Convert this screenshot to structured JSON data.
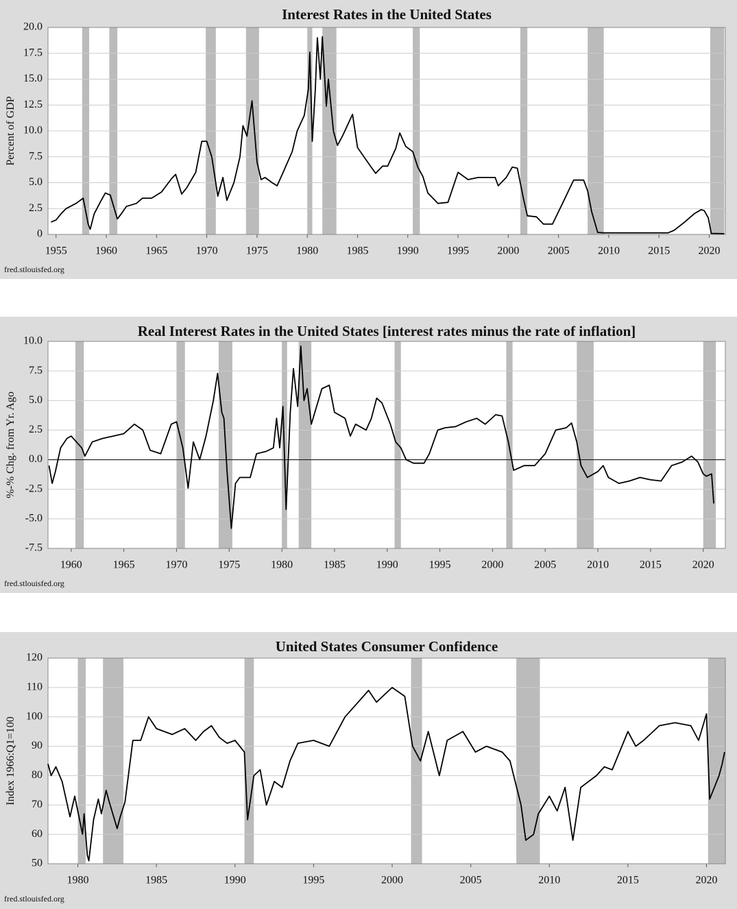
{
  "chart_data": [
    {
      "type": "line",
      "title": "Interest Rates in the United States",
      "y_label": "Percent of GDP",
      "source": "fred.stlouisfed.org",
      "color": "#000000",
      "recession_color": "#bbbbbb",
      "grid": true,
      "xlim": [
        1954.2,
        2021.6
      ],
      "ylim": [
        0,
        20
      ],
      "xticks": [
        1955,
        1960,
        1965,
        1970,
        1975,
        1980,
        1985,
        1990,
        1995,
        2000,
        2005,
        2010,
        2015,
        2020
      ],
      "yticks": [
        0,
        2.5,
        {
          "value": 5,
          "label": "5.0"
        },
        7.5,
        {
          "value": 10,
          "label": "10.0"
        },
        12.5,
        {
          "value": 15,
          "label": "15.0"
        },
        17.5,
        {
          "value": 20,
          "label": "20.0"
        }
      ],
      "recessions": [
        [
          1957.6,
          1958.3
        ],
        [
          1960.3,
          1961.1
        ],
        [
          1969.9,
          1970.9
        ],
        [
          1973.9,
          1975.2
        ],
        [
          1980.0,
          1980.5
        ],
        [
          1981.5,
          1982.9
        ],
        [
          1990.5,
          1991.2
        ],
        [
          2001.2,
          2001.9
        ],
        [
          2007.9,
          2009.5
        ],
        [
          2020.1,
          2021.5
        ]
      ],
      "x": [
        1954.5,
        1955,
        1955.5,
        1956,
        1957,
        1957.7,
        1958.2,
        1958.4,
        1958.8,
        1959.5,
        1959.9,
        1960.4,
        1960.8,
        1961.1,
        1961.5,
        1962,
        1963,
        1963.6,
        1964.5,
        1965.5,
        1966.5,
        1966.9,
        1967.5,
        1968,
        1968.9,
        1969.5,
        1970,
        1970.5,
        1971.1,
        1971.6,
        1972,
        1972.7,
        1973.3,
        1973.6,
        1974,
        1974.5,
        1975,
        1975.4,
        1975.8,
        1976.5,
        1977,
        1977.6,
        1978.5,
        1979,
        1979.7,
        1980.1,
        1980.25,
        1980.5,
        1980.8,
        1981.0,
        1981.3,
        1981.5,
        1981.9,
        1982.1,
        1982.6,
        1983,
        1983.5,
        1984.5,
        1985,
        1986,
        1986.8,
        1987.5,
        1988,
        1988.8,
        1989.2,
        1989.8,
        1990.5,
        1991,
        1991.5,
        1992,
        1993,
        1994,
        1995,
        1996,
        1997,
        1998.7,
        1999,
        1999.8,
        2000.4,
        2000.9,
        2001.5,
        2001.9,
        2002.8,
        2003.5,
        2004.4,
        2005.4,
        2006.5,
        2007.5,
        2007.9,
        2008.3,
        2008.9,
        2009.5,
        2015.9,
        2016.5,
        2017.5,
        2018.5,
        2019.2,
        2019.5,
        2019.9,
        2020.2,
        2021.5
      ],
      "values": [
        1.2,
        1.4,
        2.0,
        2.5,
        3.0,
        3.5,
        1.0,
        0.5,
        2.0,
        3.3,
        4.0,
        3.8,
        2.5,
        1.5,
        2.0,
        2.7,
        3.0,
        3.5,
        3.5,
        4.1,
        5.4,
        5.8,
        3.9,
        4.5,
        6.0,
        9.0,
        9.0,
        7.5,
        3.7,
        5.5,
        3.3,
        5.0,
        7.5,
        10.5,
        9.5,
        12.9,
        7.0,
        5.3,
        5.5,
        5.0,
        4.7,
        6.0,
        8.0,
        10.0,
        11.5,
        14.0,
        17.6,
        9.0,
        14.0,
        19.0,
        15.0,
        19.1,
        12.4,
        15.0,
        10.0,
        8.6,
        9.5,
        11.6,
        8.4,
        7.0,
        5.9,
        6.6,
        6.6,
        8.3,
        9.8,
        8.5,
        8.0,
        6.5,
        5.6,
        4.0,
        3.0,
        3.1,
        6.0,
        5.3,
        5.5,
        5.5,
        4.7,
        5.5,
        6.5,
        6.4,
        3.5,
        1.8,
        1.7,
        1.0,
        1.0,
        3.0,
        5.25,
        5.25,
        4.2,
        2.2,
        0.2,
        0.15,
        0.15,
        0.4,
        1.15,
        2.0,
        2.4,
        2.3,
        1.6,
        0.1,
        0.07
      ]
    },
    {
      "type": "line",
      "title": "Real Interest Rates in the United States [interest rates minus the rate of inflation]",
      "y_label": "%-% Chg. from Yr. Ago",
      "source": "fred.stlouisfed.org",
      "color": "#000000",
      "recession_color": "#bbbbbb",
      "grid": true,
      "zero_line": true,
      "xlim": [
        1957.8,
        2022.1
      ],
      "ylim": [
        -7.5,
        10
      ],
      "xticks": [
        1960,
        1965,
        1970,
        1975,
        1980,
        1985,
        1990,
        1995,
        2000,
        2005,
        2010,
        2015,
        2020
      ],
      "yticks": [
        -7.5,
        {
          "value": -5,
          "label": "-5.0"
        },
        -2.5,
        {
          "value": 0,
          "label": "0.0"
        },
        2.5,
        {
          "value": 5,
          "label": "5.0"
        },
        7.5,
        {
          "value": 10,
          "label": "10.0"
        }
      ],
      "recessions": [
        [
          1960.4,
          1961.2
        ],
        [
          1970.0,
          1970.8
        ],
        [
          1974.0,
          1975.3
        ],
        [
          1980.0,
          1980.5
        ],
        [
          1981.6,
          1982.8
        ],
        [
          1990.7,
          1991.3
        ],
        [
          2001.3,
          2001.9
        ],
        [
          2008.0,
          2009.6
        ],
        [
          2020.0,
          2021.2
        ]
      ],
      "x": [
        1957.9,
        1958.2,
        1958.5,
        1959,
        1959.6,
        1960,
        1960.5,
        1961,
        1961.3,
        1962,
        1963,
        1964,
        1965,
        1966,
        1966.8,
        1967.5,
        1968.5,
        1969.5,
        1970,
        1970.6,
        1971.1,
        1971.6,
        1972.2,
        1972.8,
        1973.5,
        1973.9,
        1974.3,
        1974.5,
        1974.8,
        1975.2,
        1975.6,
        1976,
        1977,
        1977.6,
        1978.5,
        1979.2,
        1979.5,
        1979.8,
        1980.1,
        1980.4,
        1980.8,
        1981.1,
        1981.5,
        1981.8,
        1982.1,
        1982.4,
        1982.8,
        1983.3,
        1983.8,
        1984.5,
        1985,
        1986,
        1986.5,
        1987,
        1988,
        1988.5,
        1989,
        1989.5,
        1990.3,
        1990.8,
        1991.3,
        1991.8,
        1992.5,
        1993.5,
        1994,
        1994.8,
        1995.5,
        1996.5,
        1997.5,
        1998.5,
        1999.3,
        2000.3,
        2000.9,
        2001.5,
        2002.0,
        2003,
        2004,
        2005,
        2006,
        2007,
        2007.5,
        2008,
        2008.4,
        2009,
        2010,
        2010.5,
        2011,
        2012,
        2013,
        2014,
        2015,
        2016,
        2017,
        2018,
        2018.9,
        2019.5,
        2020,
        2020.3,
        2020.8,
        2021.0
      ],
      "values": [
        -0.5,
        -2.0,
        -1.0,
        1.0,
        1.8,
        2.0,
        1.5,
        1.0,
        0.3,
        1.5,
        1.8,
        2.0,
        2.2,
        3.0,
        2.5,
        0.8,
        0.5,
        3.0,
        3.2,
        1.0,
        -2.4,
        1.5,
        0.0,
        2.0,
        5.0,
        7.3,
        4.0,
        3.5,
        -1.0,
        -5.8,
        -2.0,
        -1.5,
        -1.5,
        0.5,
        0.7,
        1.0,
        3.5,
        1.0,
        4.5,
        -4.2,
        4.0,
        7.7,
        4.5,
        9.6,
        5.0,
        6.0,
        3.0,
        4.5,
        6.0,
        6.3,
        4.0,
        3.5,
        2.0,
        3.0,
        2.5,
        3.5,
        5.2,
        4.8,
        3.0,
        1.5,
        1.0,
        0.0,
        -0.3,
        -0.3,
        0.5,
        2.5,
        2.7,
        2.8,
        3.2,
        3.5,
        3.0,
        3.8,
        3.7,
        1.5,
        -0.9,
        -0.5,
        -0.5,
        0.5,
        2.5,
        2.7,
        3.1,
        1.5,
        -0.5,
        -1.5,
        -1.0,
        -0.5,
        -1.5,
        -2.0,
        -1.8,
        -1.5,
        -1.7,
        -1.8,
        -0.5,
        -0.2,
        0.3,
        -0.2,
        -1.2,
        -1.4,
        -1.2,
        -3.7
      ]
    },
    {
      "type": "line",
      "title": "United States Consumer Confidence",
      "y_label": "Index 1966:Q1=100",
      "source": "fred.stlouisfed.org",
      "color": "#000000",
      "recession_color": "#bbbbbb",
      "grid": true,
      "xlim": [
        1978.1,
        2021.2
      ],
      "ylim": [
        50,
        120
      ],
      "xticks": [
        1980,
        1985,
        1990,
        1995,
        2000,
        2005,
        2010,
        2015,
        2020
      ],
      "yticks": [
        50,
        60,
        70,
        80,
        90,
        100,
        110,
        120
      ],
      "recessions": [
        [
          1980.0,
          1980.5
        ],
        [
          1981.6,
          1982.9
        ],
        [
          1990.6,
          1991.2
        ],
        [
          2001.2,
          2001.9
        ],
        [
          2007.9,
          2009.4
        ],
        [
          2020.1,
          2021.2
        ]
      ],
      "x": [
        1978.1,
        1978.3,
        1978.6,
        1979,
        1979.5,
        1979.8,
        1980.3,
        1980.4,
        1980.6,
        1980.7,
        1981,
        1981.3,
        1981.5,
        1981.8,
        1982,
        1982.5,
        1982.7,
        1983,
        1983.5,
        1984,
        1984.5,
        1985,
        1986,
        1986.8,
        1987.5,
        1988,
        1988.5,
        1989,
        1989.5,
        1990,
        1990.6,
        1990.8,
        1991.2,
        1991.6,
        1992,
        1992.5,
        1993,
        1993.5,
        1994,
        1995,
        1996,
        1997,
        1998,
        1998.5,
        1999,
        2000,
        2000.8,
        2001.3,
        2001.8,
        2002.3,
        2003,
        2003.5,
        2004.5,
        2005.3,
        2006,
        2007,
        2007.5,
        2008.2,
        2008.5,
        2009,
        2009.3,
        2010,
        2010.5,
        2011,
        2011.5,
        2012,
        2013,
        2013.5,
        2014,
        2015,
        2015.5,
        2016,
        2017,
        2018,
        2019,
        2019.5,
        2020.0,
        2020.2,
        2020.5,
        2020.8,
        2021,
        2021.15
      ],
      "values": [
        84,
        80,
        83,
        78,
        66,
        73,
        60,
        67,
        53,
        51,
        65,
        72,
        67,
        75,
        71,
        62,
        66,
        71,
        92,
        92,
        100,
        96,
        94,
        96,
        92,
        95,
        97,
        93,
        91,
        92,
        88,
        65,
        80,
        82,
        70,
        78,
        76,
        85,
        91,
        92,
        90,
        100,
        106,
        109,
        105,
        110,
        107,
        90,
        85,
        95,
        80,
        92,
        95,
        88,
        90,
        88,
        85,
        70,
        58,
        60,
        67,
        73,
        68,
        76,
        58,
        76,
        80,
        83,
        82,
        95,
        90,
        92,
        97,
        98,
        97,
        92,
        101,
        72,
        76,
        80,
        84,
        88
      ]
    }
  ]
}
